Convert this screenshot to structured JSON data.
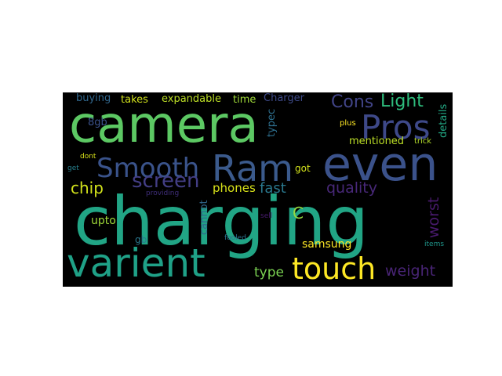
{
  "words": [
    {
      "text": "camera",
      "color": "#5cc863"
    },
    {
      "text": "charging",
      "color": "#21a585"
    },
    {
      "text": "even",
      "color": "#3b528b"
    },
    {
      "text": "Pros",
      "color": "#3e4989"
    },
    {
      "text": "Ram",
      "color": "#3b5a8c"
    },
    {
      "text": "Smooth",
      "color": "#3a538b"
    },
    {
      "text": "varient",
      "color": "#1fa187"
    },
    {
      "text": "touch",
      "color": "#fde725"
    },
    {
      "text": "screen",
      "color": "#433e85"
    },
    {
      "text": "quality",
      "color": "#482879"
    },
    {
      "text": "worst",
      "color": "#481a6c"
    },
    {
      "text": "chip",
      "color": "#d2e21b"
    },
    {
      "text": "fast",
      "color": "#2a788e"
    },
    {
      "text": "phones",
      "color": "#d8e219"
    },
    {
      "text": "C",
      "color": "#95d840"
    },
    {
      "text": "Cons",
      "color": "#414487"
    },
    {
      "text": "Light",
      "color": "#2ebc7c"
    },
    {
      "text": "weight",
      "color": "#482475"
    },
    {
      "text": "type",
      "color": "#7ad151"
    },
    {
      "text": "samsung",
      "color": "#fde725"
    },
    {
      "text": "upto",
      "color": "#a0da39"
    },
    {
      "text": "gb",
      "color": "#2a788e"
    },
    {
      "text": "cannot",
      "color": "#31688e"
    },
    {
      "text": "typec",
      "color": "#2e6f8e"
    },
    {
      "text": "mentioned",
      "color": "#bddf26"
    },
    {
      "text": "Charger",
      "color": "#3e4a89"
    },
    {
      "text": "time",
      "color": "#a0da39"
    },
    {
      "text": "expandable",
      "color": "#bddf26"
    },
    {
      "text": "takes",
      "color": "#d0e11c"
    },
    {
      "text": "buying",
      "color": "#31688e"
    },
    {
      "text": "8gb",
      "color": "#3b528b"
    },
    {
      "text": "details",
      "color": "#22a884"
    },
    {
      "text": "got",
      "color": "#d2e21b"
    },
    {
      "text": "plus",
      "color": "#fde725"
    },
    {
      "text": "trick",
      "color": "#b5de2b"
    },
    {
      "text": "dont",
      "color": "#d8e219"
    },
    {
      "text": "get",
      "color": "#27808e"
    },
    {
      "text": "providing",
      "color": "#3f2e7a"
    },
    {
      "text": "sell",
      "color": "#481c6e"
    },
    {
      "text": "fooled",
      "color": "#2c728e"
    },
    {
      "text": "items",
      "color": "#1f968b"
    }
  ]
}
